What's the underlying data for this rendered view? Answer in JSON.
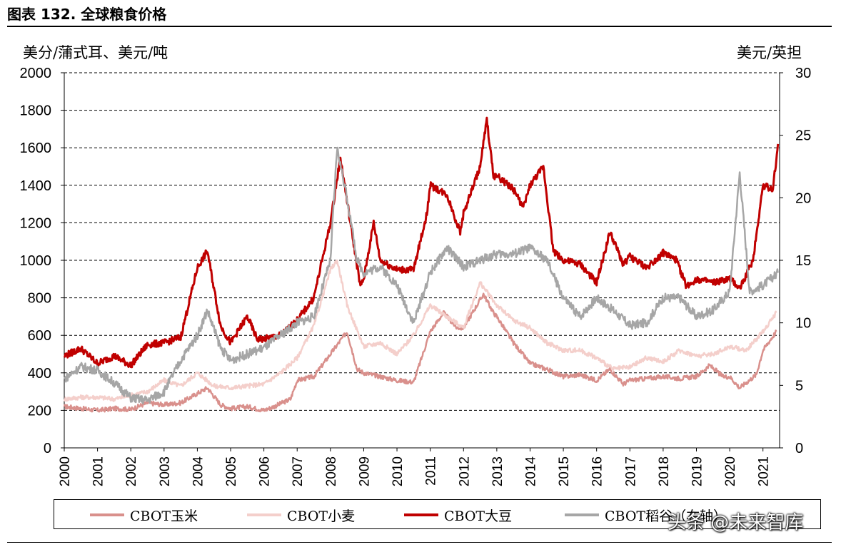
{
  "figure": {
    "title": "图表 132. 全球粮食价格",
    "left_unit": "美分/蒲式耳、美元/吨",
    "right_unit": "美元/英担",
    "watermark": "头条 @未来智库"
  },
  "chart_data": {
    "type": "line",
    "x_range": [
      2000,
      2021.5
    ],
    "x_ticks": [
      "2000",
      "2001",
      "2002",
      "2003",
      "2004",
      "2005",
      "2006",
      "2007",
      "2008",
      "2009",
      "2010",
      "2011",
      "2012",
      "2013",
      "2014",
      "2015",
      "2016",
      "2017",
      "2018",
      "2019",
      "2020",
      "2021"
    ],
    "ylim_left": [
      0,
      2000
    ],
    "yticks_left": [
      0,
      200,
      400,
      600,
      800,
      1000,
      1200,
      1400,
      1600,
      1800,
      2000
    ],
    "ylim_right": [
      0,
      30
    ],
    "yticks_right": [
      0,
      5,
      10,
      15,
      20,
      25,
      30
    ],
    "grid": "horizontal dashed",
    "legend_position": "bottom",
    "series": [
      {
        "name": "CBOT玉米",
        "axis": "left",
        "color": "#d9908c",
        "points": [
          [
            2000,
            220
          ],
          [
            2000.5,
            210
          ],
          [
            2001,
            200
          ],
          [
            2001.5,
            210
          ],
          [
            2002,
            205
          ],
          [
            2002.5,
            240
          ],
          [
            2003,
            230
          ],
          [
            2003.5,
            240
          ],
          [
            2004,
            290
          ],
          [
            2004.3,
            320
          ],
          [
            2004.7,
            230
          ],
          [
            2005,
            210
          ],
          [
            2005.5,
            220
          ],
          [
            2006,
            200
          ],
          [
            2006.3,
            220
          ],
          [
            2006.8,
            260
          ],
          [
            2007,
            360
          ],
          [
            2007.5,
            380
          ],
          [
            2008,
            500
          ],
          [
            2008.5,
            620
          ],
          [
            2008.8,
            420
          ],
          [
            2009,
            400
          ],
          [
            2009.5,
            380
          ],
          [
            2010,
            360
          ],
          [
            2010.5,
            350
          ],
          [
            2011,
            620
          ],
          [
            2011.4,
            720
          ],
          [
            2011.8,
            640
          ],
          [
            2012,
            640
          ],
          [
            2012.6,
            820
          ],
          [
            2012.9,
            720
          ],
          [
            2013,
            700
          ],
          [
            2013.5,
            560
          ],
          [
            2014,
            450
          ],
          [
            2014.5,
            420
          ],
          [
            2015,
            380
          ],
          [
            2015.5,
            390
          ],
          [
            2016,
            360
          ],
          [
            2016.4,
            420
          ],
          [
            2016.8,
            340
          ],
          [
            2017,
            360
          ],
          [
            2017.5,
            370
          ],
          [
            2018,
            380
          ],
          [
            2018.5,
            370
          ],
          [
            2019,
            380
          ],
          [
            2019.4,
            440
          ],
          [
            2019.8,
            380
          ],
          [
            2020,
            380
          ],
          [
            2020.3,
            320
          ],
          [
            2020.8,
            390
          ],
          [
            2021,
            520
          ],
          [
            2021.4,
            620
          ]
        ]
      },
      {
        "name": "CBOT小麦",
        "axis": "left",
        "color": "#f4cfcb",
        "points": [
          [
            2000,
            260
          ],
          [
            2000.5,
            270
          ],
          [
            2001,
            270
          ],
          [
            2001.5,
            260
          ],
          [
            2002,
            280
          ],
          [
            2002.5,
            300
          ],
          [
            2003,
            360
          ],
          [
            2003.5,
            330
          ],
          [
            2004,
            400
          ],
          [
            2004.5,
            330
          ],
          [
            2005,
            320
          ],
          [
            2005.5,
            330
          ],
          [
            2006,
            340
          ],
          [
            2006.5,
            400
          ],
          [
            2007,
            480
          ],
          [
            2007.5,
            650
          ],
          [
            2008,
            950
          ],
          [
            2008.2,
            1000
          ],
          [
            2008.5,
            760
          ],
          [
            2009,
            540
          ],
          [
            2009.5,
            560
          ],
          [
            2010,
            500
          ],
          [
            2010.5,
            600
          ],
          [
            2011,
            760
          ],
          [
            2011.5,
            700
          ],
          [
            2012,
            640
          ],
          [
            2012.5,
            880
          ],
          [
            2013,
            760
          ],
          [
            2013.5,
            680
          ],
          [
            2014,
            640
          ],
          [
            2014.5,
            560
          ],
          [
            2015,
            520
          ],
          [
            2015.5,
            520
          ],
          [
            2016,
            480
          ],
          [
            2016.5,
            420
          ],
          [
            2017,
            430
          ],
          [
            2017.5,
            480
          ],
          [
            2018,
            460
          ],
          [
            2018.5,
            520
          ],
          [
            2019,
            490
          ],
          [
            2019.5,
            500
          ],
          [
            2020,
            540
          ],
          [
            2020.5,
            520
          ],
          [
            2021,
            620
          ],
          [
            2021.4,
            720
          ]
        ]
      },
      {
        "name": "CBOT大豆",
        "axis": "left",
        "color": "#c00000",
        "points": [
          [
            2000,
            490
          ],
          [
            2000.5,
            530
          ],
          [
            2001,
            450
          ],
          [
            2001.5,
            490
          ],
          [
            2002,
            440
          ],
          [
            2002.5,
            550
          ],
          [
            2003,
            560
          ],
          [
            2003.5,
            590
          ],
          [
            2004,
            960
          ],
          [
            2004.3,
            1050
          ],
          [
            2004.7,
            650
          ],
          [
            2005,
            560
          ],
          [
            2005.5,
            700
          ],
          [
            2005.8,
            580
          ],
          [
            2006,
            580
          ],
          [
            2006.5,
            600
          ],
          [
            2007,
            680
          ],
          [
            2007.5,
            800
          ],
          [
            2008,
            1200
          ],
          [
            2008.3,
            1550
          ],
          [
            2008.6,
            1200
          ],
          [
            2008.9,
            860
          ],
          [
            2009,
            900
          ],
          [
            2009.3,
            1200
          ],
          [
            2009.5,
            1000
          ],
          [
            2010,
            950
          ],
          [
            2010.5,
            950
          ],
          [
            2010.9,
            1250
          ],
          [
            2011,
            1400
          ],
          [
            2011.5,
            1350
          ],
          [
            2011.9,
            1150
          ],
          [
            2012,
            1250
          ],
          [
            2012.5,
            1500
          ],
          [
            2012.7,
            1750
          ],
          [
            2012.9,
            1450
          ],
          [
            2013,
            1450
          ],
          [
            2013.5,
            1380
          ],
          [
            2013.8,
            1280
          ],
          [
            2014,
            1400
          ],
          [
            2014.4,
            1500
          ],
          [
            2014.7,
            1050
          ],
          [
            2015,
            1000
          ],
          [
            2015.5,
            980
          ],
          [
            2016,
            880
          ],
          [
            2016.4,
            1150
          ],
          [
            2016.8,
            980
          ],
          [
            2017,
            1020
          ],
          [
            2017.5,
            960
          ],
          [
            2018,
            1040
          ],
          [
            2018.4,
            1000
          ],
          [
            2018.7,
            860
          ],
          [
            2019,
            900
          ],
          [
            2019.5,
            880
          ],
          [
            2020,
            900
          ],
          [
            2020.3,
            850
          ],
          [
            2020.7,
            1000
          ],
          [
            2021,
            1400
          ],
          [
            2021.3,
            1380
          ],
          [
            2021.45,
            1620
          ]
        ]
      },
      {
        "name": "CBOT稻谷（右轴）",
        "axis": "right",
        "color": "#a6a6a6",
        "points": [
          [
            2000,
            5.5
          ],
          [
            2000.5,
            6.5
          ],
          [
            2001,
            6.2
          ],
          [
            2001.5,
            5.2
          ],
          [
            2002,
            4.0
          ],
          [
            2002.5,
            3.8
          ],
          [
            2003,
            4.5
          ],
          [
            2003.5,
            7.0
          ],
          [
            2004,
            9.0
          ],
          [
            2004.3,
            11.0
          ],
          [
            2004.7,
            8.0
          ],
          [
            2005,
            7.0
          ],
          [
            2005.5,
            7.5
          ],
          [
            2006,
            8.0
          ],
          [
            2006.5,
            9.0
          ],
          [
            2007,
            10.0
          ],
          [
            2007.5,
            10.5
          ],
          [
            2008,
            15.0
          ],
          [
            2008.2,
            24.0
          ],
          [
            2008.5,
            20.0
          ],
          [
            2008.8,
            15.0
          ],
          [
            2009,
            14.0
          ],
          [
            2009.5,
            14.5
          ],
          [
            2010,
            13.0
          ],
          [
            2010.5,
            10.0
          ],
          [
            2011,
            14.0
          ],
          [
            2011.5,
            16.0
          ],
          [
            2012,
            14.5
          ],
          [
            2012.5,
            15.0
          ],
          [
            2013,
            15.5
          ],
          [
            2013.5,
            15.5
          ],
          [
            2014,
            16.0
          ],
          [
            2014.5,
            15.0
          ],
          [
            2015,
            12.0
          ],
          [
            2015.5,
            10.5
          ],
          [
            2016,
            12.0
          ],
          [
            2016.5,
            11.0
          ],
          [
            2017,
            9.8
          ],
          [
            2017.5,
            10.0
          ],
          [
            2018,
            12.0
          ],
          [
            2018.5,
            12.0
          ],
          [
            2019,
            10.5
          ],
          [
            2019.5,
            11.0
          ],
          [
            2020,
            12.5
          ],
          [
            2020.3,
            22.0
          ],
          [
            2020.6,
            12.5
          ],
          [
            2021,
            13.0
          ],
          [
            2021.45,
            14.0
          ]
        ]
      }
    ]
  }
}
